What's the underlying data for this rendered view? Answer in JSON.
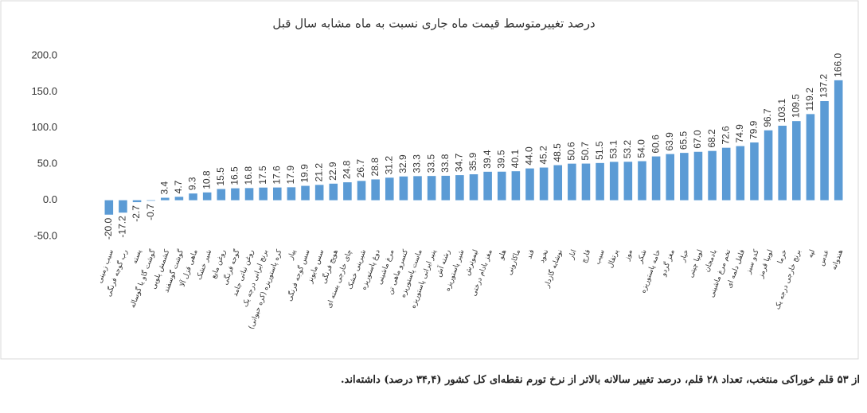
{
  "chart_data": {
    "type": "bar",
    "title": "درصد تغییرمتوسط قیمت ماه جاری نسبت به ماه مشابه سال قبل",
    "categories": [
      "سیب زمینی",
      "رب گوجه فرنگی",
      "پسته",
      "گوشت گاو یا گوساله",
      "کشمش پلویی",
      "گوشت گوسفند",
      "ماهی قزل آلا",
      "شیر خشک",
      "روغن مایع",
      "گوجه فرنگی",
      "روغن نباتی جامد",
      "برنج ایرانی درجه یک",
      "کره پاستوریزه (کره حیوانی)",
      "پیاز",
      "سس گوجه فرنگی",
      "سس مایونز",
      "هویج فرنگی",
      "چای خارجی بسته ای",
      "شیرینی خشک",
      "دوغ پاستوریزه",
      "مرغ ماشینی",
      "کنسرو ماهی تن",
      "ماست پاستوریزه",
      "پنیر ایرانی پاستوریزه",
      "رشته آش",
      "شیر پاستوریزه",
      "لیموترش",
      "مغز بادام درختی",
      "هلو",
      "ماکارونی",
      "قند",
      "نخود",
      "نوشابه گازدار",
      "انار",
      "قارچ",
      "سیب",
      "پرتقال",
      "موز",
      "شکر",
      "خامه پاستوریزه",
      "مغز گردو",
      "خیار",
      "لوبیا چیتی",
      "بادمجان",
      "تخم مرغ ماشینی",
      "فلفل دلمه ای",
      "کدو سبز",
      "لوبیا قرمز",
      "خرما",
      "برنج خارجی درجه یک",
      "لپه",
      "عدس",
      "هندوانه"
    ],
    "values": [
      -20.0,
      -17.2,
      -2.7,
      -0.7,
      3.4,
      4.7,
      9.3,
      10.8,
      15.5,
      16.5,
      16.8,
      17.5,
      17.6,
      17.9,
      19.9,
      21.2,
      22.9,
      24.8,
      26.7,
      28.8,
      31.2,
      32.9,
      33.3,
      33.5,
      33.8,
      34.7,
      35.9,
      39.4,
      39.5,
      40.1,
      44.0,
      45.2,
      48.5,
      50.6,
      50.7,
      51.5,
      53.1,
      53.2,
      54.0,
      60.6,
      63.9,
      65.5,
      67.0,
      68.2,
      72.6,
      74.9,
      79.9,
      96.7,
      103.1,
      109.5,
      119.2,
      137.2,
      166.0
    ],
    "value_labels": [
      "-20.0",
      "-17.2",
      "-2.7",
      "-0.7",
      "3.4",
      "4.7",
      "9.3",
      "10.8",
      "15.5",
      "16.5",
      "16.8",
      "17.5",
      "17.6",
      "17.9",
      "19.9",
      "21.2",
      "22.9",
      "24.8",
      "26.7",
      "28.8",
      "31.2",
      "32.9",
      "33.3",
      "33.5",
      "33.8",
      "34.7",
      "35.9",
      "39.4",
      "39.5",
      "40.1",
      "44.0",
      "45.2",
      "48.5",
      "50.6",
      "50.7",
      "51.5",
      "53.1",
      "53.2",
      "54.0",
      "60.6",
      "63.9",
      "65.5",
      "67.0",
      "68.2",
      "72.6",
      "74.9",
      "79.9",
      "96.7",
      "103.1",
      "109.5",
      "119.2",
      "137.2",
      "166.0"
    ],
    "color": "#5b9bd5",
    "ylim": [
      -50,
      200
    ],
    "yticks": [
      {
        "value": -50,
        "label": "-50.0"
      },
      {
        "value": 0,
        "label": "0.0"
      },
      {
        "value": 50,
        "label": "50.0"
      },
      {
        "value": 100,
        "label": "100.0"
      },
      {
        "value": 150,
        "label": "150.0"
      },
      {
        "value": 200,
        "label": "200.0"
      }
    ]
  },
  "footer": "از ۵۳ قلم خوراکی منتخب، تعداد ۲۸ قلم، درصد تغییر سالانه بالاتر از نرخ تورم نقطه‌ای کل کشور (۳۴,۴ درصد) داشته‌اند."
}
